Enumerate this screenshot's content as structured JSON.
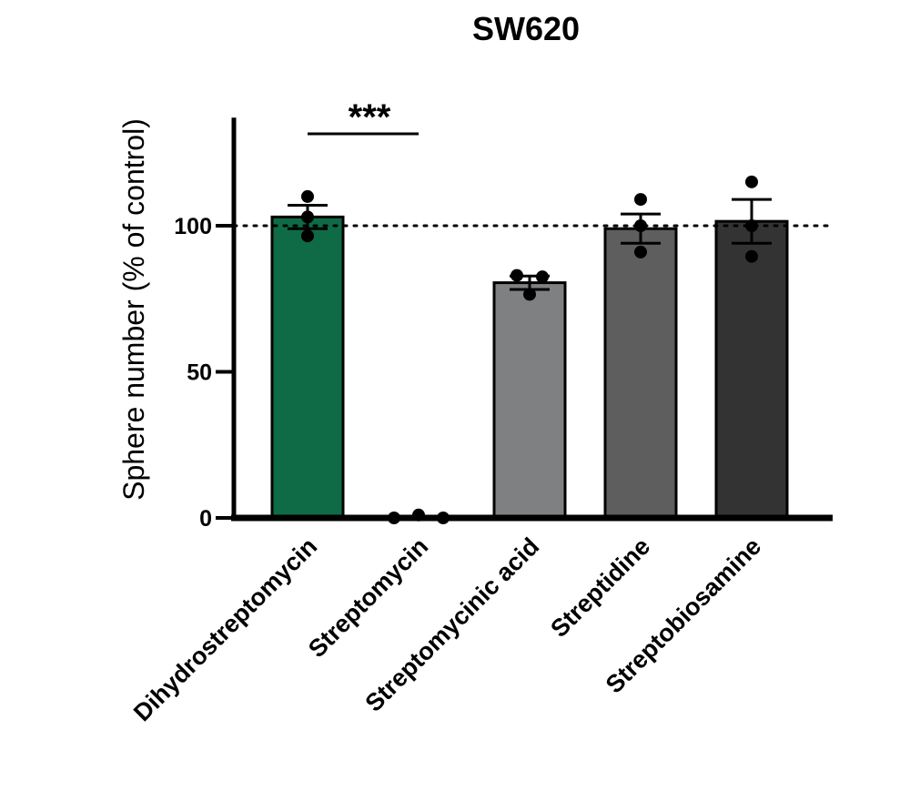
{
  "chart_data": {
    "type": "bar",
    "title": "SW620",
    "xlabel": "",
    "ylabel": "Sphere number (% of control)",
    "ylim": [
      0,
      137
    ],
    "yticks": [
      0,
      50,
      100
    ],
    "ytick_labels": [
      "0",
      "50",
      "100"
    ],
    "reference_line": {
      "y": 100,
      "style": "dotted"
    },
    "categories": [
      "Dihydrostreptomycin",
      "Streptomycin",
      "Streptomycinic acid",
      "Streptidine",
      "Streptobiosamine"
    ],
    "values": [
      103,
      0.5,
      80.5,
      99,
      101.5
    ],
    "sem": [
      4,
      0.4,
      2.3,
      5,
      7.5
    ],
    "points": [
      [
        110,
        103,
        96.5
      ],
      [
        0,
        1,
        0
      ],
      [
        83,
        82.5,
        76.5
      ],
      [
        109,
        100,
        91
      ],
      [
        115,
        100,
        89.5
      ]
    ],
    "colors": [
      "#0e6b45",
      "#7a7a7a",
      "#7f8081",
      "#5e5e5e",
      "#333333"
    ],
    "significance": [
      {
        "from": 0,
        "to": 1,
        "label": "***"
      }
    ]
  }
}
